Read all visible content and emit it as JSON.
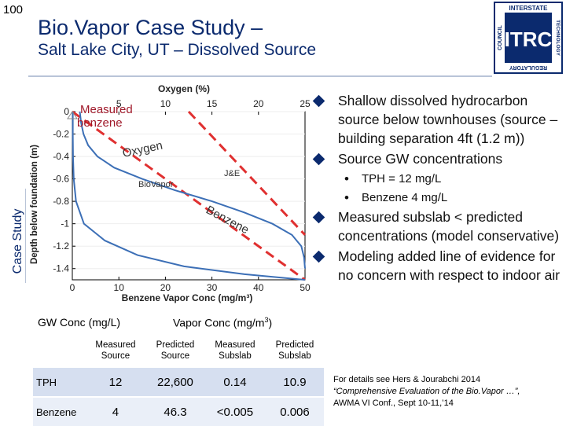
{
  "slide": {
    "number": "100",
    "title_line1": "Bio.Vapor Case Study –",
    "title_line2": "Salt Lake City, UT – Dissolved Source",
    "side_label": "Case Study"
  },
  "logo": {
    "text_top": "INTERSTATE",
    "text_mid": "TECHNOLOGY",
    "text_bottom": "REGULATORY",
    "text_left": "COUNCIL",
    "mark": "ITRC",
    "color": "#0b2a6e"
  },
  "chart_data": {
    "type": "line",
    "top_axis_label": "Oxygen (%)",
    "top_axis_ticks": [
      "5",
      "10",
      "15",
      "20",
      "25"
    ],
    "top_axis_range": [
      0,
      25
    ],
    "xlabel": "Benzene Vapor Conc (mg/m³)",
    "x_ticks": [
      "0",
      "10",
      "20",
      "30",
      "40",
      "50"
    ],
    "xlim": [
      0,
      50
    ],
    "ylabel": "Depth below foundation (m)",
    "y_ticks": [
      "0",
      "-0.2",
      "-0.4",
      "-0.6",
      "-0.8",
      "-1",
      "-1.2",
      "-1.4"
    ],
    "ylim": [
      -1.5,
      0
    ],
    "annotations": {
      "measured": "Measured",
      "benzene_label": "benzene",
      "oxygen": "Oxygen",
      "benzene_curve": "Benzene",
      "je": "J&E",
      "biovapor": "BioVapor"
    },
    "series": [
      {
        "name": "Oxygen (J&E, linear)",
        "axis": "top",
        "color": "#e03030",
        "dashed": true,
        "points": [
          [
            12.5,
            0
          ],
          [
            25,
            -1.1
          ]
        ]
      },
      {
        "name": "Benzene (J&E, linear)",
        "axis": "bottom",
        "color": "#e03030",
        "dashed": true,
        "points": [
          [
            0,
            0
          ],
          [
            50,
            -1.5
          ]
        ]
      },
      {
        "name": "Oxygen (BioVapor)",
        "axis": "top",
        "color": "#3c6fb6",
        "dashed": false,
        "points": [
          [
            0.8,
            0
          ],
          [
            0.95,
            -0.1
          ],
          [
            1.2,
            -0.2
          ],
          [
            1.7,
            -0.3
          ],
          [
            2.7,
            -0.4
          ],
          [
            4.5,
            -0.5
          ],
          [
            7.5,
            -0.6
          ],
          [
            11,
            -0.7
          ],
          [
            15,
            -0.8
          ],
          [
            18.5,
            -0.9
          ],
          [
            21.5,
            -1.0
          ],
          [
            23.6,
            -1.1
          ],
          [
            24.6,
            -1.2
          ],
          [
            24.9,
            -1.3
          ],
          [
            25,
            -1.4
          ]
        ]
      },
      {
        "name": "Benzene (BioVapor)",
        "axis": "bottom",
        "color": "#3c6fb6",
        "dashed": false,
        "points": [
          [
            0.1,
            0
          ],
          [
            0.1,
            -0.2
          ],
          [
            0.15,
            -0.4
          ],
          [
            0.3,
            -0.6
          ],
          [
            0.8,
            -0.8
          ],
          [
            2.5,
            -1.0
          ],
          [
            7,
            -1.15
          ],
          [
            14,
            -1.28
          ],
          [
            24,
            -1.38
          ],
          [
            37,
            -1.45
          ],
          [
            50,
            -1.5
          ]
        ]
      }
    ],
    "measured_point": [
      0,
      0
    ]
  },
  "table": {
    "gw_heading": "GW Conc (mg/L)",
    "vapor_heading_text": "Vapor Conc (mg/m",
    "vapor_heading_sup": "3",
    "vapor_heading_close": ")",
    "columns": [
      [
        "Measured",
        "Source"
      ],
      [
        "Predicted",
        "Source"
      ],
      [
        "Measured",
        "Subslab"
      ],
      [
        "Predicted",
        "Subslab"
      ]
    ],
    "rows": [
      {
        "label": "TPH",
        "values": [
          "12",
          "22,600",
          "0.14",
          "10.9"
        ]
      },
      {
        "label": "Benzene",
        "values": [
          "4",
          "46.3",
          "<0.005",
          "0.006"
        ]
      }
    ]
  },
  "bullets": [
    {
      "text": "Shallow dissolved hydrocarbon source below townhouses (source – building separation 4ft (1.2 m))",
      "subs": []
    },
    {
      "text": "Source GW concentrations",
      "subs": [
        "TPH = 12 mg/L",
        "Benzene 4 mg/L"
      ]
    },
    {
      "text": "Measured subslab < predicted concentrations (model conservative)",
      "subs": []
    },
    {
      "text": "Modeling added line of evidence for no concern with respect to indoor air",
      "subs": []
    }
  ],
  "footnote": {
    "line1": "For details see Hers & Jourabchi 2014",
    "line2": "“Comprehensive Evaluation of the Bio.Vapor …”,",
    "line3": "AWMA VI Conf., Sept 10-11,’14"
  },
  "colors": {
    "title": "#0b2a6e",
    "accent": "#0b2a6e",
    "jne_line": "#e03030",
    "biovapor_line": "#3c6fb6",
    "table_row1": "#d6dff0",
    "table_row2": "#eaeff8"
  }
}
